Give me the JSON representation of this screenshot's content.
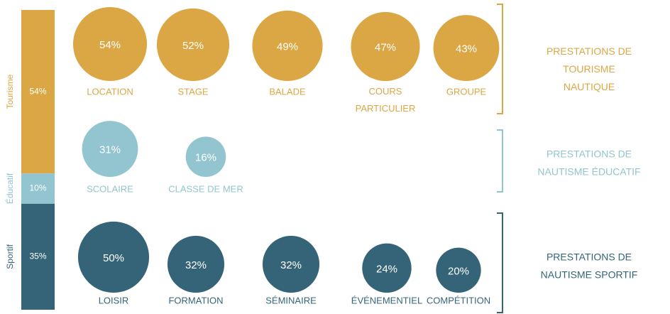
{
  "chart_data": [
    {
      "type": "stacked",
      "series": [
        {
          "name": "Tourisme",
          "color": "#dba744",
          "values": [
            54
          ],
          "value_labels": [
            "54%"
          ]
        },
        {
          "name": "Éducatif",
          "color": "#92c5cf",
          "values": [
            10
          ],
          "value_labels": [
            "10%"
          ]
        },
        {
          "name": "Sportif",
          "color": "#356478",
          "values": [
            35
          ],
          "value_labels": [
            "35%"
          ]
        }
      ]
    },
    {
      "type": "bubble",
      "groups": [
        {
          "name": "PRESTATIONS DE\nTOURISME\nNAUTIQUE",
          "color": "#dba744",
          "categories": [
            "LOCATION",
            "STAGE",
            "BALADE",
            "COURS\nPARTICULIER",
            "GROUPE"
          ],
          "values": [
            54,
            52,
            49,
            47,
            43
          ],
          "value_labels": [
            "54%",
            "52%",
            "49%",
            "47%",
            "43%"
          ]
        },
        {
          "name": "PRESTATIONS DE\nNAUTISME ÉDUCATIF",
          "color": "#92c5cf",
          "categories": [
            "SCOLAIRE",
            "CLASSE DE MER"
          ],
          "values": [
            31,
            16
          ],
          "value_labels": [
            "31%",
            "16%"
          ]
        },
        {
          "name": "PRESTATIONS DE\nNAUTISME SPORTIF",
          "color": "#356478",
          "categories": [
            "LOISIR",
            "FORMATION",
            "SÉMINAIRE",
            "ÉVÉNEMENTIEL",
            "COMPÉTITION"
          ],
          "values": [
            50,
            32,
            32,
            24,
            20
          ],
          "value_labels": [
            "50%",
            "32%",
            "32%",
            "24%",
            "20%"
          ]
        }
      ]
    }
  ]
}
